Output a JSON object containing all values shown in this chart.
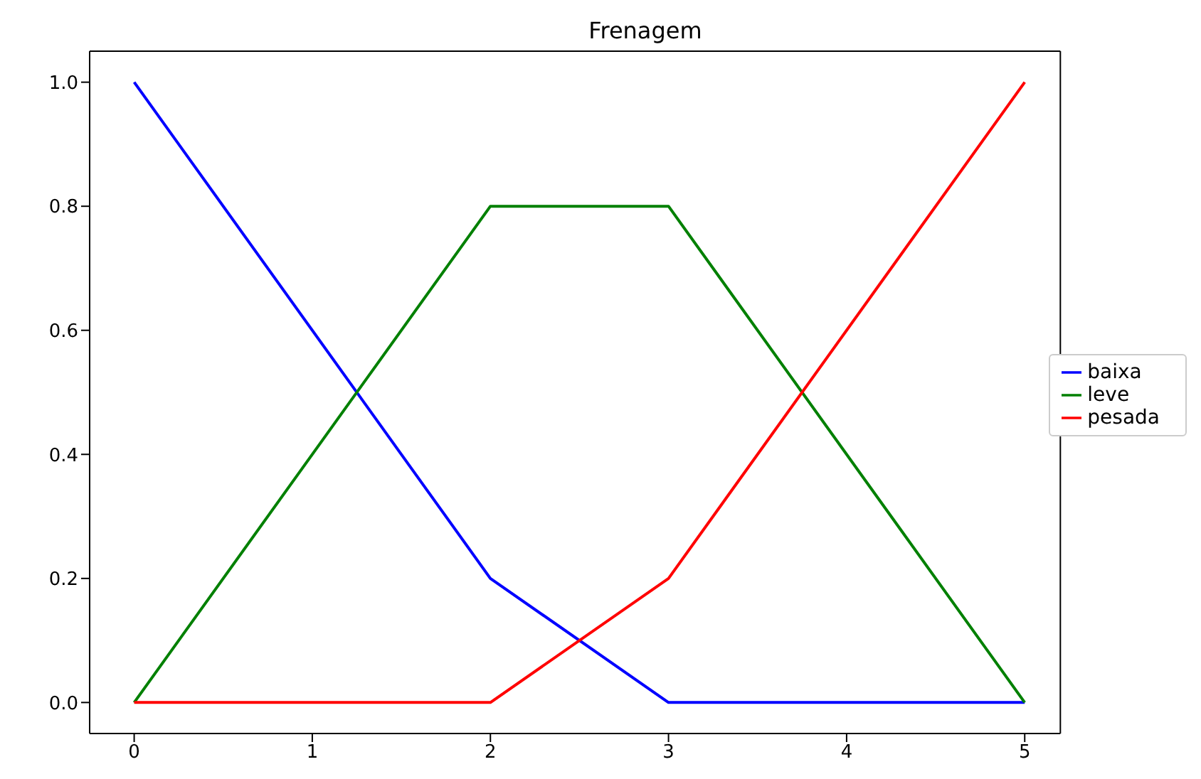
{
  "chart_data": {
    "type": "line",
    "title": "Frenagem",
    "x": [
      0,
      2,
      3,
      5
    ],
    "series": [
      {
        "name": "baixa",
        "color": "#0000ff",
        "values": [
          1,
          0.2,
          0,
          0
        ]
      },
      {
        "name": "leve",
        "color": "#008000",
        "values": [
          0,
          0.8,
          0.8,
          0
        ]
      },
      {
        "name": "pesada",
        "color": "#ff0000",
        "values": [
          0,
          0,
          0.2,
          1
        ]
      }
    ],
    "xlim": [
      -0.25,
      5.2
    ],
    "xticks": [
      0,
      1,
      2,
      3,
      4,
      5
    ],
    "ylim": [
      -0.05,
      1.05
    ],
    "yticks": [
      {
        "value": 0,
        "label": "0.0"
      },
      0.2,
      0.4,
      0.6,
      0.8,
      {
        "value": 1,
        "label": "1.0"
      }
    ],
    "grid": false,
    "legend": "right",
    "marker": "none",
    "line_style": "solid"
  }
}
